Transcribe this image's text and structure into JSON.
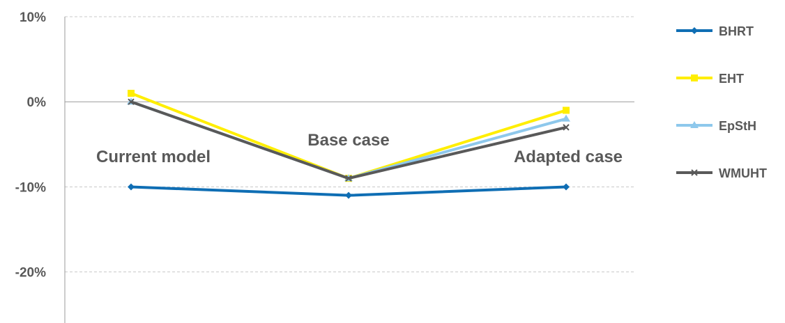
{
  "chart_data": {
    "type": "line",
    "categories": [
      "Current model",
      "Base case",
      "Adapted case"
    ],
    "ylim": [
      -26,
      10
    ],
    "yticks": [
      10,
      0,
      -10,
      -20
    ],
    "ytick_labels": [
      "10%",
      "0%",
      "-10%",
      "-20%"
    ],
    "grid": true,
    "legend_position": "right",
    "series": [
      {
        "name": "BHRT",
        "values": [
          -10,
          -11,
          -10
        ],
        "color": "#0f6eb4",
        "marker": "diamond"
      },
      {
        "name": "EHT",
        "values": [
          1,
          -9,
          -1
        ],
        "color": "#ffee00",
        "marker": "square"
      },
      {
        "name": "EpStH",
        "values": [
          0,
          -9,
          -2
        ],
        "color": "#8ec8ec",
        "marker": "triangle"
      },
      {
        "name": "WMUHT",
        "values": [
          0,
          -9,
          -3
        ],
        "color": "#595959",
        "marker": "x"
      }
    ]
  }
}
